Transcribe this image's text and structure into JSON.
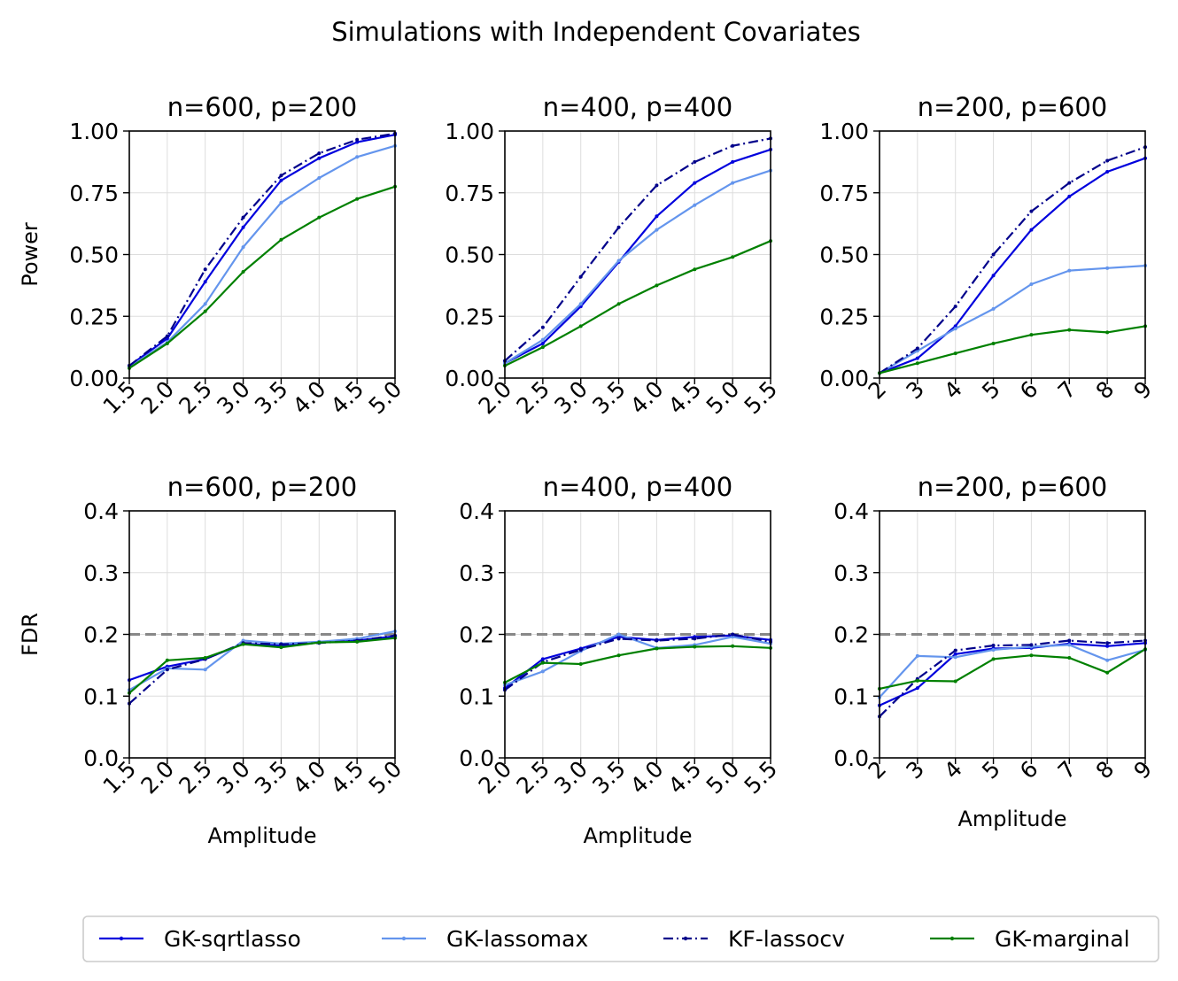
{
  "suptitle": "Simulations with Independent Covariates",
  "colors": {
    "GK-sqrtlasso": "#0000dd",
    "GK-lassomax": "#6495ed",
    "KF-lassocv": "#00008b",
    "GK-marginal": "#008000",
    "nominal": "#888888",
    "grid": "#dddddd"
  },
  "legend": [
    {
      "name": "GK-sqrtlasso",
      "style": "solid"
    },
    {
      "name": "GK-lassomax",
      "style": "solid"
    },
    {
      "name": "KF-lassocv",
      "style": "dashdot"
    },
    {
      "name": "GK-marginal",
      "style": "solid"
    }
  ],
  "chart_data": [
    {
      "type": "line",
      "title": "n=600, p=200",
      "ylabel": "Power",
      "xlabel": "",
      "x": [
        1.5,
        2.0,
        2.5,
        3.0,
        3.5,
        4.0,
        4.5,
        5.0
      ],
      "xticks": [
        "1.5",
        "2.0",
        "2.5",
        "3.0",
        "3.5",
        "4.0",
        "4.5",
        "5.0"
      ],
      "yticks": [
        "0.00",
        "0.25",
        "0.50",
        "0.75",
        "1.00"
      ],
      "ylim": [
        0,
        1
      ],
      "tick_rotate": true,
      "series": [
        {
          "name": "GK-sqrtlasso",
          "values": [
            0.05,
            0.16,
            0.39,
            0.61,
            0.8,
            0.89,
            0.955,
            0.985
          ]
        },
        {
          "name": "GK-lassomax",
          "values": [
            0.045,
            0.145,
            0.3,
            0.53,
            0.71,
            0.81,
            0.895,
            0.94
          ]
        },
        {
          "name": "KF-lassocv",
          "values": [
            0.05,
            0.17,
            0.44,
            0.65,
            0.82,
            0.91,
            0.965,
            0.99
          ]
        },
        {
          "name": "GK-marginal",
          "values": [
            0.04,
            0.14,
            0.27,
            0.43,
            0.56,
            0.65,
            0.725,
            0.775
          ]
        }
      ]
    },
    {
      "type": "line",
      "title": "n=400, p=400",
      "ylabel": "",
      "xlabel": "",
      "x": [
        2.0,
        2.5,
        3.0,
        3.5,
        4.0,
        4.5,
        5.0,
        5.5
      ],
      "xticks": [
        "2.0",
        "2.5",
        "3.0",
        "3.5",
        "4.0",
        "4.5",
        "5.0",
        "5.5"
      ],
      "yticks": [
        "0.00",
        "0.25",
        "0.50",
        "0.75",
        "1.00"
      ],
      "ylim": [
        0,
        1
      ],
      "tick_rotate": true,
      "series": [
        {
          "name": "GK-sqrtlasso",
          "values": [
            0.06,
            0.14,
            0.29,
            0.47,
            0.655,
            0.79,
            0.875,
            0.925
          ]
        },
        {
          "name": "GK-lassomax",
          "values": [
            0.06,
            0.155,
            0.3,
            0.475,
            0.6,
            0.7,
            0.79,
            0.84
          ]
        },
        {
          "name": "KF-lassocv",
          "values": [
            0.07,
            0.205,
            0.41,
            0.61,
            0.78,
            0.875,
            0.94,
            0.97
          ]
        },
        {
          "name": "GK-marginal",
          "values": [
            0.05,
            0.125,
            0.21,
            0.3,
            0.375,
            0.44,
            0.49,
            0.555
          ]
        }
      ]
    },
    {
      "type": "line",
      "title": "n=200, p=600",
      "ylabel": "",
      "xlabel": "",
      "x": [
        2,
        3,
        4,
        5,
        6,
        7,
        8,
        9
      ],
      "xticks": [
        "2",
        "3",
        "4",
        "5",
        "6",
        "7",
        "8",
        "9"
      ],
      "yticks": [
        "0.00",
        "0.25",
        "0.50",
        "0.75",
        "1.00"
      ],
      "ylim": [
        0,
        1
      ],
      "tick_rotate": true,
      "series": [
        {
          "name": "GK-sqrtlasso",
          "values": [
            0.02,
            0.08,
            0.21,
            0.415,
            0.6,
            0.735,
            0.835,
            0.89
          ]
        },
        {
          "name": "GK-lassomax",
          "values": [
            0.02,
            0.11,
            0.2,
            0.28,
            0.38,
            0.435,
            0.445,
            0.455
          ]
        },
        {
          "name": "KF-lassocv",
          "values": [
            0.02,
            0.12,
            0.29,
            0.5,
            0.675,
            0.79,
            0.88,
            0.935
          ]
        },
        {
          "name": "GK-marginal",
          "values": [
            0.02,
            0.06,
            0.1,
            0.14,
            0.175,
            0.195,
            0.185,
            0.21
          ]
        }
      ]
    },
    {
      "type": "line",
      "title": "n=600, p=200",
      "ylabel": "FDR",
      "xlabel": "Amplitude",
      "x": [
        1.5,
        2.0,
        2.5,
        3.0,
        3.5,
        4.0,
        4.5,
        5.0
      ],
      "xticks": [
        "1.5",
        "2.0",
        "2.5",
        "3.0",
        "3.5",
        "4.0",
        "4.5",
        "5.0"
      ],
      "yticks": [
        "0.0",
        "0.1",
        "0.2",
        "0.3",
        "0.4"
      ],
      "ylim": [
        0,
        0.4
      ],
      "tick_rotate": true,
      "nominal": 0.2,
      "series": [
        {
          "name": "GK-sqrtlasso",
          "values": [
            0.126,
            0.148,
            0.16,
            0.185,
            0.182,
            0.188,
            0.19,
            0.197
          ]
        },
        {
          "name": "GK-lassomax",
          "values": [
            0.11,
            0.145,
            0.143,
            0.19,
            0.185,
            0.188,
            0.193,
            0.205
          ]
        },
        {
          "name": "KF-lassocv",
          "values": [
            0.088,
            0.143,
            0.16,
            0.186,
            0.184,
            0.186,
            0.19,
            0.198
          ]
        },
        {
          "name": "GK-marginal",
          "values": [
            0.105,
            0.158,
            0.162,
            0.184,
            0.179,
            0.187,
            0.188,
            0.194
          ]
        }
      ]
    },
    {
      "type": "line",
      "title": "n=400, p=400",
      "ylabel": "",
      "xlabel": "Amplitude",
      "x": [
        2.0,
        2.5,
        3.0,
        3.5,
        4.0,
        4.5,
        5.0,
        5.5
      ],
      "xticks": [
        "2.0",
        "2.5",
        "3.0",
        "3.5",
        "4.0",
        "4.5",
        "5.0",
        "5.5"
      ],
      "yticks": [
        "0.0",
        "0.1",
        "0.2",
        "0.3",
        "0.4"
      ],
      "ylim": [
        0,
        0.4
      ],
      "tick_rotate": true,
      "nominal": 0.2,
      "series": [
        {
          "name": "GK-sqrtlasso",
          "values": [
            0.113,
            0.16,
            0.177,
            0.196,
            0.191,
            0.196,
            0.198,
            0.191
          ]
        },
        {
          "name": "GK-lassomax",
          "values": [
            0.118,
            0.14,
            0.173,
            0.2,
            0.178,
            0.183,
            0.196,
            0.185
          ]
        },
        {
          "name": "KF-lassocv",
          "values": [
            0.11,
            0.155,
            0.175,
            0.193,
            0.19,
            0.193,
            0.2,
            0.188
          ]
        },
        {
          "name": "GK-marginal",
          "values": [
            0.122,
            0.154,
            0.152,
            0.166,
            0.177,
            0.18,
            0.181,
            0.178
          ]
        }
      ]
    },
    {
      "type": "line",
      "title": "n=200, p=600",
      "ylabel": "",
      "xlabel": "Amplitude",
      "x": [
        2,
        3,
        4,
        5,
        6,
        7,
        8,
        9
      ],
      "xticks": [
        "2",
        "3",
        "4",
        "5",
        "6",
        "7",
        "8",
        "9"
      ],
      "yticks": [
        "0.0",
        "0.1",
        "0.2",
        "0.3",
        "0.4"
      ],
      "ylim": [
        0,
        0.4
      ],
      "tick_rotate": true,
      "nominal": 0.2,
      "series": [
        {
          "name": "GK-sqrtlasso",
          "values": [
            0.085,
            0.113,
            0.168,
            0.177,
            0.178,
            0.185,
            0.181,
            0.186
          ]
        },
        {
          "name": "GK-lassomax",
          "values": [
            0.098,
            0.165,
            0.163,
            0.175,
            0.18,
            0.183,
            0.158,
            0.175
          ]
        },
        {
          "name": "KF-lassocv",
          "values": [
            0.067,
            0.128,
            0.174,
            0.182,
            0.183,
            0.19,
            0.186,
            0.19
          ]
        },
        {
          "name": "GK-marginal",
          "values": [
            0.112,
            0.125,
            0.124,
            0.16,
            0.166,
            0.162,
            0.138,
            0.176
          ]
        }
      ]
    }
  ]
}
